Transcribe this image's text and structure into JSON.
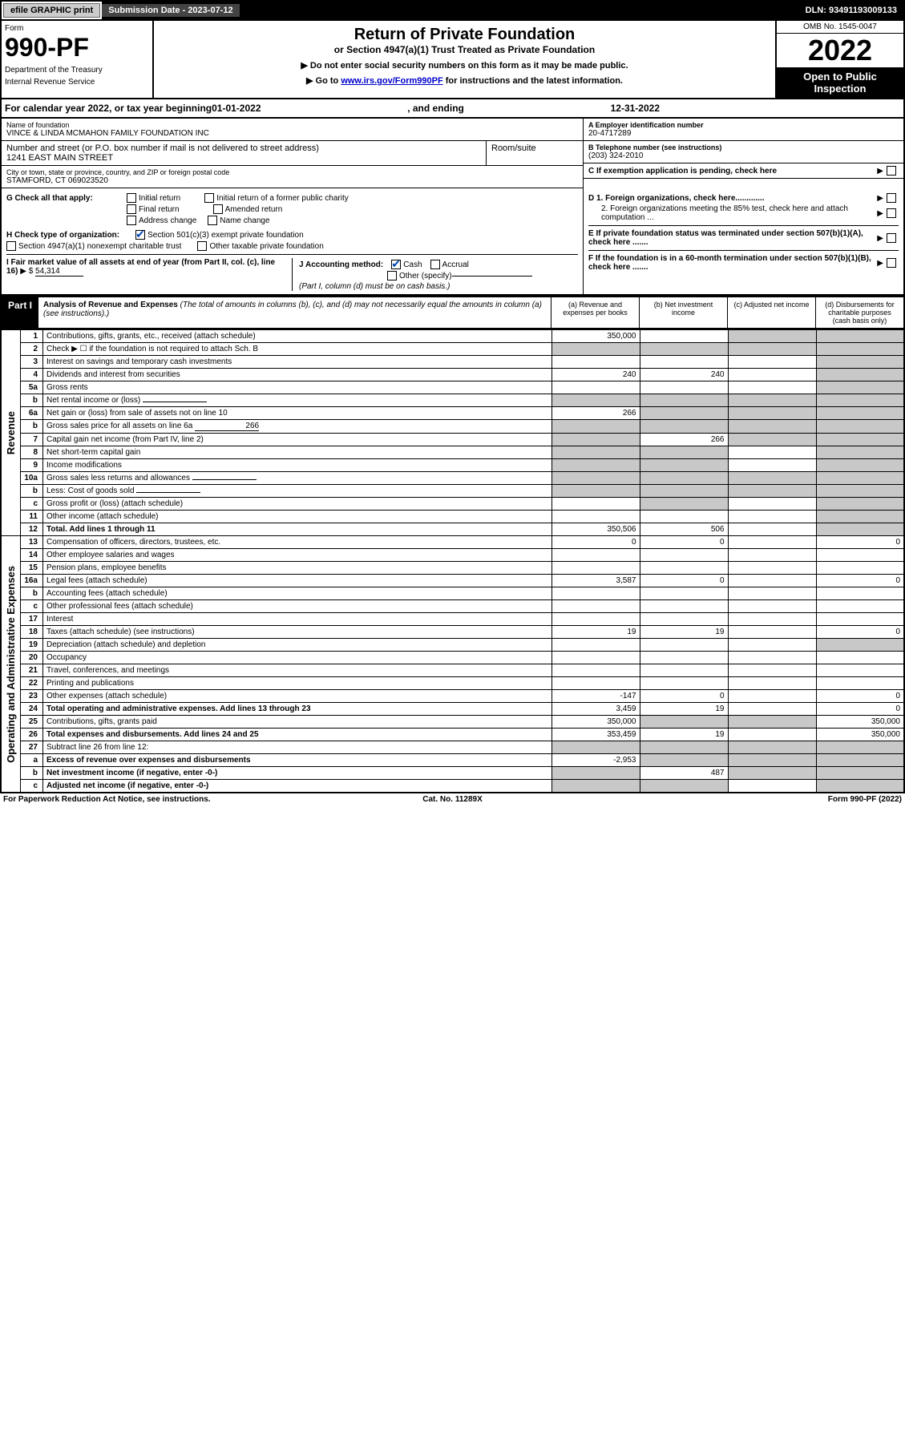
{
  "topbar": {
    "efile": "efile GRAPHIC print",
    "submission_label": "Submission Date - 2023-07-12",
    "dln": "DLN: 93491193009133"
  },
  "header": {
    "form_label": "Form",
    "form_number": "990-PF",
    "dept": "Department of the Treasury",
    "irs": "Internal Revenue Service",
    "title": "Return of Private Foundation",
    "subtitle": "or Section 4947(a)(1) Trust Treated as Private Foundation",
    "instr1": "▶ Do not enter social security numbers on this form as it may be made public.",
    "instr2_pre": "▶ Go to ",
    "instr2_link": "www.irs.gov/Form990PF",
    "instr2_post": " for instructions and the latest information.",
    "omb": "OMB No. 1545-0047",
    "year": "2022",
    "open": "Open to Public Inspection"
  },
  "calyear": {
    "pre": "For calendar year 2022, or tax year beginning ",
    "begin": "01-01-2022",
    "mid": " , and ending ",
    "end": "12-31-2022"
  },
  "entity": {
    "name_label": "Name of foundation",
    "name": "VINCE & LINDA MCMAHON FAMILY FOUNDATION INC",
    "addr_label": "Number and street (or P.O. box number if mail is not delivered to street address)",
    "addr": "1241 EAST MAIN STREET",
    "room_label": "Room/suite",
    "room": "",
    "city_label": "City or town, state or province, country, and ZIP or foreign postal code",
    "city": "STAMFORD, CT  069023520",
    "ein_label": "A Employer identification number",
    "ein": "20-4717289",
    "phone_label": "B Telephone number (see instructions)",
    "phone": "(203) 324-2010",
    "c_label": "C If exemption application is pending, check here",
    "d1": "D 1. Foreign organizations, check here.............",
    "d2": "2. Foreign organizations meeting the 85% test, check here and attach computation ...",
    "e_label": "E  If private foundation status was terminated under section 507(b)(1)(A), check here .......",
    "f_label": "F  If the foundation is in a 60-month termination under section 507(b)(1)(B), check here ......."
  },
  "g": {
    "label": "G Check all that apply:",
    "initial": "Initial return",
    "initial_former": "Initial return of a former public charity",
    "final": "Final return",
    "amended": "Amended return",
    "address": "Address change",
    "name": "Name change"
  },
  "h": {
    "label": "H Check type of organization:",
    "501c3": "Section 501(c)(3) exempt private foundation",
    "4947": "Section 4947(a)(1) nonexempt charitable trust",
    "other_taxable": "Other taxable private foundation"
  },
  "i": {
    "label": "I Fair market value of all assets at end of year (from Part II, col. (c), line 16)",
    "arrow": "▶ $",
    "value": "54,314"
  },
  "j": {
    "label": "J Accounting method:",
    "cash": "Cash",
    "accrual": "Accrual",
    "other": "Other (specify)",
    "note": "(Part I, column (d) must be on cash basis.)"
  },
  "part1": {
    "label": "Part I",
    "title": "Analysis of Revenue and Expenses",
    "note": "(The total of amounts in columns (b), (c), and (d) may not necessarily equal the amounts in column (a) (see instructions).)",
    "col_a": "(a) Revenue and expenses per books",
    "col_b": "(b) Net investment income",
    "col_c": "(c) Adjusted net income",
    "col_d": "(d) Disbursements for charitable purposes (cash basis only)"
  },
  "sections": {
    "revenue": "Revenue",
    "expenses": "Operating and Administrative Expenses"
  },
  "rows": [
    {
      "n": "1",
      "desc": "Contributions, gifts, grants, etc., received (attach schedule)",
      "a": "350,000",
      "b": "",
      "c": "grey",
      "d": "grey"
    },
    {
      "n": "2",
      "desc": "Check ▶ ☐ if the foundation is not required to attach Sch. B",
      "a": "grey",
      "b": "grey",
      "c": "grey",
      "d": "grey"
    },
    {
      "n": "3",
      "desc": "Interest on savings and temporary cash investments",
      "a": "",
      "b": "",
      "c": "",
      "d": "grey"
    },
    {
      "n": "4",
      "desc": "Dividends and interest from securities",
      "a": "240",
      "b": "240",
      "c": "",
      "d": "grey"
    },
    {
      "n": "5a",
      "desc": "Gross rents",
      "a": "",
      "b": "",
      "c": "",
      "d": "grey"
    },
    {
      "n": "b",
      "desc": "Net rental income or (loss)",
      "a": "grey",
      "b": "grey",
      "c": "grey",
      "d": "grey",
      "inline": ""
    },
    {
      "n": "6a",
      "desc": "Net gain or (loss) from sale of assets not on line 10",
      "a": "266",
      "b": "grey",
      "c": "grey",
      "d": "grey"
    },
    {
      "n": "b",
      "desc": "Gross sales price for all assets on line 6a",
      "a": "grey",
      "b": "grey",
      "c": "grey",
      "d": "grey",
      "inline": "266"
    },
    {
      "n": "7",
      "desc": "Capital gain net income (from Part IV, line 2)",
      "a": "grey",
      "b": "266",
      "c": "grey",
      "d": "grey"
    },
    {
      "n": "8",
      "desc": "Net short-term capital gain",
      "a": "grey",
      "b": "grey",
      "c": "",
      "d": "grey"
    },
    {
      "n": "9",
      "desc": "Income modifications",
      "a": "grey",
      "b": "grey",
      "c": "",
      "d": "grey"
    },
    {
      "n": "10a",
      "desc": "Gross sales less returns and allowances",
      "a": "grey",
      "b": "grey",
      "c": "grey",
      "d": "grey",
      "inline": ""
    },
    {
      "n": "b",
      "desc": "Less: Cost of goods sold",
      "a": "grey",
      "b": "grey",
      "c": "grey",
      "d": "grey",
      "inline": ""
    },
    {
      "n": "c",
      "desc": "Gross profit or (loss) (attach schedule)",
      "a": "",
      "b": "grey",
      "c": "",
      "d": "grey"
    },
    {
      "n": "11",
      "desc": "Other income (attach schedule)",
      "a": "",
      "b": "",
      "c": "",
      "d": "grey"
    },
    {
      "n": "12",
      "desc": "Total. Add lines 1 through 11",
      "a": "350,506",
      "b": "506",
      "c": "",
      "d": "grey",
      "bold": true
    },
    {
      "n": "13",
      "desc": "Compensation of officers, directors, trustees, etc.",
      "a": "0",
      "b": "0",
      "c": "",
      "d": "0"
    },
    {
      "n": "14",
      "desc": "Other employee salaries and wages",
      "a": "",
      "b": "",
      "c": "",
      "d": ""
    },
    {
      "n": "15",
      "desc": "Pension plans, employee benefits",
      "a": "",
      "b": "",
      "c": "",
      "d": ""
    },
    {
      "n": "16a",
      "desc": "Legal fees (attach schedule)",
      "a": "3,587",
      "b": "0",
      "c": "",
      "d": "0"
    },
    {
      "n": "b",
      "desc": "Accounting fees (attach schedule)",
      "a": "",
      "b": "",
      "c": "",
      "d": ""
    },
    {
      "n": "c",
      "desc": "Other professional fees (attach schedule)",
      "a": "",
      "b": "",
      "c": "",
      "d": ""
    },
    {
      "n": "17",
      "desc": "Interest",
      "a": "",
      "b": "",
      "c": "",
      "d": ""
    },
    {
      "n": "18",
      "desc": "Taxes (attach schedule) (see instructions)",
      "a": "19",
      "b": "19",
      "c": "",
      "d": "0"
    },
    {
      "n": "19",
      "desc": "Depreciation (attach schedule) and depletion",
      "a": "",
      "b": "",
      "c": "",
      "d": "grey"
    },
    {
      "n": "20",
      "desc": "Occupancy",
      "a": "",
      "b": "",
      "c": "",
      "d": ""
    },
    {
      "n": "21",
      "desc": "Travel, conferences, and meetings",
      "a": "",
      "b": "",
      "c": "",
      "d": ""
    },
    {
      "n": "22",
      "desc": "Printing and publications",
      "a": "",
      "b": "",
      "c": "",
      "d": ""
    },
    {
      "n": "23",
      "desc": "Other expenses (attach schedule)",
      "a": "-147",
      "b": "0",
      "c": "",
      "d": "0"
    },
    {
      "n": "24",
      "desc": "Total operating and administrative expenses. Add lines 13 through 23",
      "a": "3,459",
      "b": "19",
      "c": "",
      "d": "0",
      "bold": true
    },
    {
      "n": "25",
      "desc": "Contributions, gifts, grants paid",
      "a": "350,000",
      "b": "grey",
      "c": "grey",
      "d": "350,000"
    },
    {
      "n": "26",
      "desc": "Total expenses and disbursements. Add lines 24 and 25",
      "a": "353,459",
      "b": "19",
      "c": "",
      "d": "350,000",
      "bold": true
    },
    {
      "n": "27",
      "desc": "Subtract line 26 from line 12:",
      "a": "grey",
      "b": "grey",
      "c": "grey",
      "d": "grey"
    },
    {
      "n": "a",
      "desc": "Excess of revenue over expenses and disbursements",
      "a": "-2,953",
      "b": "grey",
      "c": "grey",
      "d": "grey",
      "bold": true
    },
    {
      "n": "b",
      "desc": "Net investment income (if negative, enter -0-)",
      "a": "grey",
      "b": "487",
      "c": "grey",
      "d": "grey",
      "bold": true
    },
    {
      "n": "c",
      "desc": "Adjusted net income (if negative, enter -0-)",
      "a": "grey",
      "b": "grey",
      "c": "",
      "d": "grey",
      "bold": true
    }
  ],
  "footer": {
    "left": "For Paperwork Reduction Act Notice, see instructions.",
    "center": "Cat. No. 11289X",
    "right": "Form 990-PF (2022)"
  },
  "colors": {
    "grey": "#c8c8c8",
    "black": "#000000",
    "link": "#0000cc",
    "check": "#0047b3"
  }
}
